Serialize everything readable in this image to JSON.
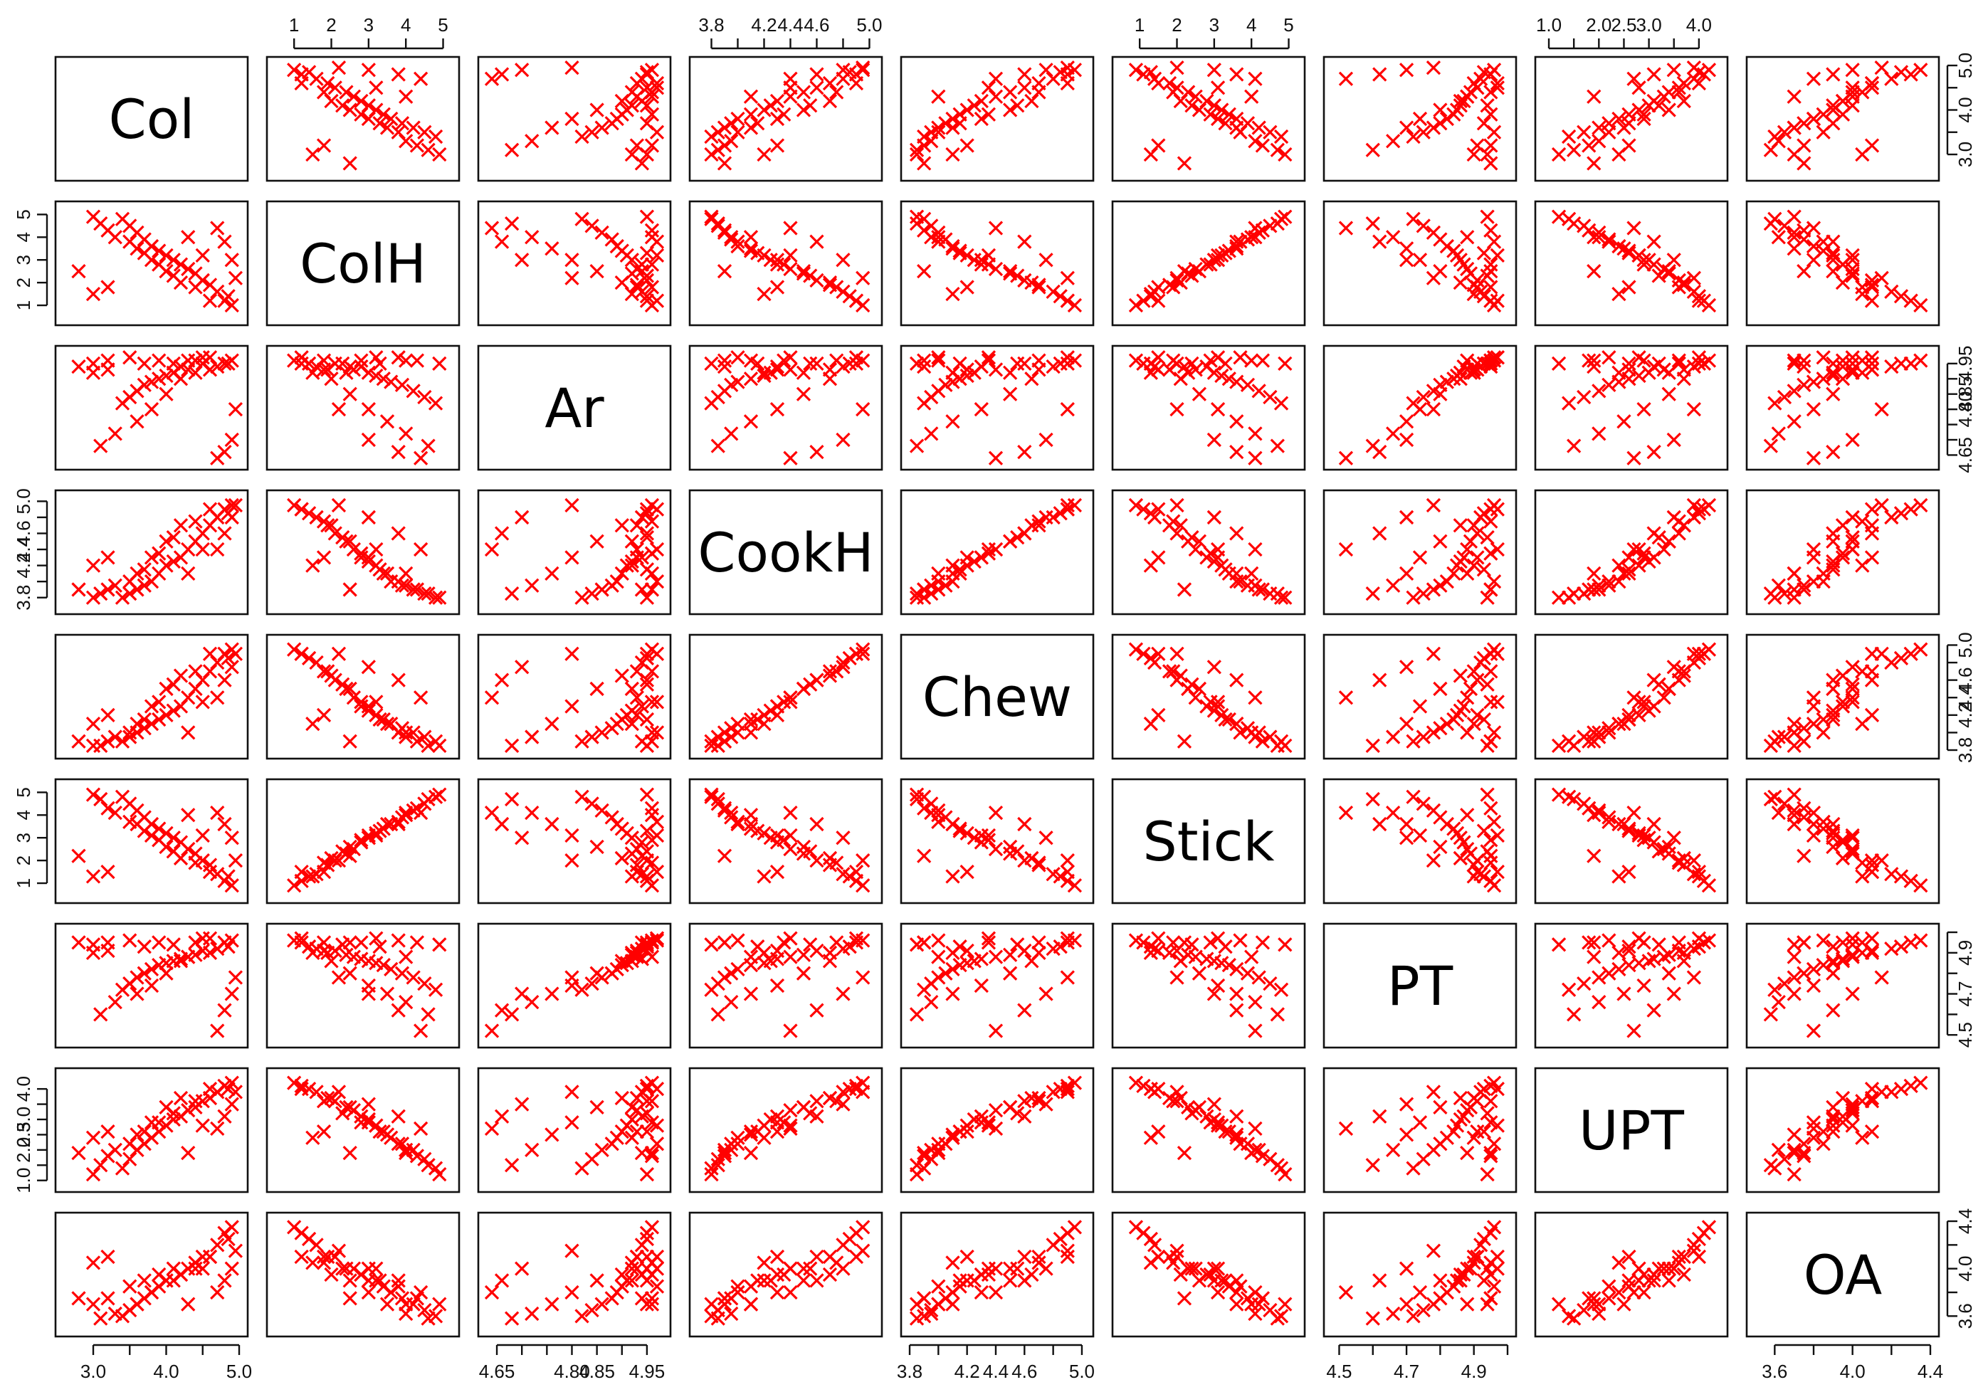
{
  "chart_data": {
    "type": "scatter",
    "matrix": "pairs",
    "marker": "x",
    "point_color": "#ff0000",
    "variables": [
      {
        "name": "Col",
        "range": [
          2.6,
          5.0
        ],
        "ticks": [
          {
            "v": 3.0,
            "label": "3.0"
          },
          {
            "v": 3.5,
            "label": ""
          },
          {
            "v": 4.0,
            "label": "4.0"
          },
          {
            "v": 4.5,
            "label": ""
          },
          {
            "v": 5.0,
            "label": "5.0"
          }
        ]
      },
      {
        "name": "ColH",
        "range": [
          0.5,
          5.2
        ],
        "ticks": [
          {
            "v": 1,
            "label": "1"
          },
          {
            "v": 2,
            "label": "2"
          },
          {
            "v": 3,
            "label": "3"
          },
          {
            "v": 4,
            "label": "4"
          },
          {
            "v": 5,
            "label": "5"
          }
        ]
      },
      {
        "name": "Ar",
        "range": [
          4.63,
          4.98
        ],
        "ticks": [
          {
            "v": 4.65,
            "label": "4.65"
          },
          {
            "v": 4.7,
            "label": ""
          },
          {
            "v": 4.75,
            "label": ""
          },
          {
            "v": 4.8,
            "label": "4.80"
          },
          {
            "v": 4.85,
            "label": "4.85"
          },
          {
            "v": 4.9,
            "label": ""
          },
          {
            "v": 4.95,
            "label": "4.95"
          }
        ]
      },
      {
        "name": "CookH",
        "range": [
          3.7,
          5.03
        ],
        "ticks": [
          {
            "v": 3.8,
            "label": "3.8"
          },
          {
            "v": 4.0,
            "label": ""
          },
          {
            "v": 4.2,
            "label": "4.2"
          },
          {
            "v": 4.4,
            "label": "4.4"
          },
          {
            "v": 4.6,
            "label": "4.6"
          },
          {
            "v": 4.8,
            "label": ""
          },
          {
            "v": 5.0,
            "label": "5.0"
          }
        ]
      },
      {
        "name": "Chew",
        "range": [
          3.8,
          5.02
        ],
        "ticks": [
          {
            "v": 3.8,
            "label": "3.8"
          },
          {
            "v": 4.0,
            "label": ""
          },
          {
            "v": 4.2,
            "label": "4.2"
          },
          {
            "v": 4.4,
            "label": "4.4"
          },
          {
            "v": 4.6,
            "label": "4.6"
          },
          {
            "v": 4.8,
            "label": ""
          },
          {
            "v": 5.0,
            "label": "5.0"
          }
        ]
      },
      {
        "name": "Stick",
        "range": [
          0.5,
          5.2
        ],
        "ticks": [
          {
            "v": 1,
            "label": "1"
          },
          {
            "v": 2,
            "label": "2"
          },
          {
            "v": 3,
            "label": "3"
          },
          {
            "v": 4,
            "label": "4"
          },
          {
            "v": 5,
            "label": "5"
          }
        ]
      },
      {
        "name": "PT",
        "range": [
          4.48,
          5.0
        ],
        "ticks": [
          {
            "v": 4.5,
            "label": "4.5"
          },
          {
            "v": 4.6,
            "label": ""
          },
          {
            "v": 4.7,
            "label": "4.7"
          },
          {
            "v": 4.8,
            "label": ""
          },
          {
            "v": 4.9,
            "label": "4.9"
          },
          {
            "v": 5.0,
            "label": ""
          }
        ]
      },
      {
        "name": "UPT",
        "range": [
          0.9,
          4.4
        ],
        "ticks": [
          {
            "v": 1.0,
            "label": "1.0"
          },
          {
            "v": 1.5,
            "label": ""
          },
          {
            "v": 2.0,
            "label": "2.0"
          },
          {
            "v": 2.5,
            "label": "2.5"
          },
          {
            "v": 3.0,
            "label": "3.0"
          },
          {
            "v": 3.5,
            "label": ""
          },
          {
            "v": 4.0,
            "label": "4.0"
          }
        ]
      },
      {
        "name": "OA",
        "range": [
          3.5,
          4.4
        ],
        "ticks": [
          {
            "v": 3.6,
            "label": "3.6"
          },
          {
            "v": 3.8,
            "label": ""
          },
          {
            "v": 4.0,
            "label": "4.0"
          },
          {
            "v": 4.2,
            "label": ""
          },
          {
            "v": 4.4,
            "label": "4.4"
          }
        ]
      }
    ],
    "axes": {
      "top_columns": [
        1,
        3,
        5,
        7
      ],
      "bottom_columns": [
        0,
        2,
        4,
        6,
        8
      ],
      "right_rows": [
        0,
        2,
        4,
        6,
        8
      ],
      "left_rows": [
        1,
        3,
        5,
        7
      ]
    },
    "points": [
      [
        4.8,
        1.2,
        4.95,
        4.9,
        4.9,
        1.1,
        4.95,
        4.1,
        4.3
      ],
      [
        4.7,
        1.6,
        4.94,
        4.8,
        4.8,
        1.4,
        4.92,
        3.9,
        4.2
      ],
      [
        4.6,
        1.9,
        4.93,
        4.7,
        4.7,
        1.8,
        4.9,
        3.7,
        4.1
      ],
      [
        4.5,
        2.1,
        4.95,
        4.6,
        4.6,
        2.0,
        4.91,
        3.6,
        4.1
      ],
      [
        4.4,
        2.4,
        4.92,
        4.5,
        4.5,
        2.3,
        4.89,
        3.4,
        4.0
      ],
      [
        4.3,
        2.6,
        4.93,
        4.4,
        4.4,
        2.5,
        4.88,
        3.3,
        4.0
      ],
      [
        4.2,
        2.8,
        4.94,
        4.3,
        4.3,
        2.8,
        4.87,
        3.1,
        3.95
      ],
      [
        4.1,
        3.0,
        4.92,
        4.25,
        4.25,
        3.0,
        4.86,
        3.0,
        3.9
      ],
      [
        4.0,
        3.2,
        4.91,
        4.2,
        4.2,
        3.2,
        4.85,
        2.8,
        3.9
      ],
      [
        3.9,
        3.4,
        4.9,
        4.1,
        4.15,
        3.4,
        4.84,
        2.6,
        3.85
      ],
      [
        3.8,
        3.6,
        4.89,
        4.0,
        4.1,
        3.6,
        4.82,
        2.4,
        3.8
      ],
      [
        3.7,
        3.9,
        4.88,
        3.95,
        4.05,
        3.9,
        4.8,
        2.2,
        3.75
      ],
      [
        3.6,
        4.2,
        4.86,
        3.9,
        4.0,
        4.2,
        4.78,
        2.0,
        3.7
      ],
      [
        3.5,
        4.5,
        4.84,
        3.85,
        3.95,
        4.5,
        4.75,
        1.7,
        3.65
      ],
      [
        3.4,
        4.8,
        4.82,
        3.8,
        3.9,
        4.8,
        4.72,
        1.4,
        3.6
      ],
      [
        4.9,
        1.0,
        4.96,
        4.95,
        4.95,
        0.9,
        4.96,
        4.2,
        4.35
      ],
      [
        4.85,
        1.4,
        4.95,
        4.85,
        4.85,
        1.3,
        4.93,
        4.0,
        4.25
      ],
      [
        4.2,
        2.0,
        4.9,
        4.7,
        4.65,
        2.1,
        4.86,
        3.7,
        3.95
      ],
      [
        4.0,
        2.5,
        4.85,
        4.5,
        4.5,
        2.6,
        4.8,
        3.4,
        3.9
      ],
      [
        3.8,
        3.0,
        4.8,
        4.3,
        4.3,
        3.1,
        4.74,
        2.9,
        3.8
      ],
      [
        3.6,
        3.5,
        4.76,
        4.1,
        4.1,
        3.6,
        4.7,
        2.5,
        3.7
      ],
      [
        3.3,
        4.0,
        4.72,
        3.95,
        3.95,
        4.1,
        4.66,
        2.0,
        3.62
      ],
      [
        3.1,
        4.6,
        4.68,
        3.85,
        3.85,
        4.7,
        4.6,
        1.5,
        3.58
      ],
      [
        4.6,
        1.2,
        4.97,
        4.9,
        4.9,
        1.5,
        4.97,
        4.0,
        4.1
      ],
      [
        4.4,
        1.8,
        4.96,
        4.75,
        4.7,
        1.9,
        4.95,
        3.6,
        4.05
      ],
      [
        4.1,
        2.3,
        4.95,
        4.55,
        4.55,
        2.4,
        4.94,
        3.2,
        4.0
      ],
      [
        3.9,
        2.8,
        4.96,
        4.35,
        4.35,
        2.9,
        4.95,
        2.9,
        3.95
      ],
      [
        3.7,
        3.3,
        4.95,
        4.15,
        4.15,
        3.3,
        4.93,
        2.6,
        3.9
      ],
      [
        3.5,
        3.8,
        4.97,
        4.0,
        4.0,
        3.7,
        4.96,
        2.2,
        3.85
      ],
      [
        3.2,
        4.3,
        4.96,
        3.9,
        3.9,
        4.3,
        4.95,
        1.8,
        3.75
      ],
      [
        3.0,
        4.9,
        4.95,
        3.8,
        3.85,
        4.9,
        4.94,
        1.2,
        3.7
      ],
      [
        4.95,
        2.2,
        4.8,
        4.95,
        4.9,
        2.0,
        4.78,
        3.9,
        4.15
      ],
      [
        4.9,
        3.0,
        4.7,
        4.8,
        4.75,
        3.0,
        4.7,
        3.5,
        4.0
      ],
      [
        4.8,
        3.8,
        4.66,
        4.6,
        4.6,
        3.6,
        4.62,
        3.1,
        3.9
      ],
      [
        4.7,
        4.4,
        4.64,
        4.4,
        4.4,
        4.1,
        4.52,
        2.7,
        3.8
      ],
      [
        3.0,
        1.5,
        4.92,
        4.2,
        4.1,
        1.3,
        4.9,
        2.4,
        4.05
      ],
      [
        3.2,
        1.8,
        4.93,
        4.3,
        4.2,
        1.5,
        4.91,
        2.6,
        4.1
      ],
      [
        2.8,
        2.5,
        4.94,
        3.9,
        3.9,
        2.2,
        4.95,
        1.9,
        3.75
      ],
      [
        4.3,
        4.0,
        4.96,
        4.1,
        4.0,
        4.0,
        4.88,
        1.9,
        3.7
      ],
      [
        4.5,
        3.2,
        4.97,
        4.4,
        4.35,
        3.1,
        4.97,
        2.8,
        4.0
      ]
    ]
  }
}
